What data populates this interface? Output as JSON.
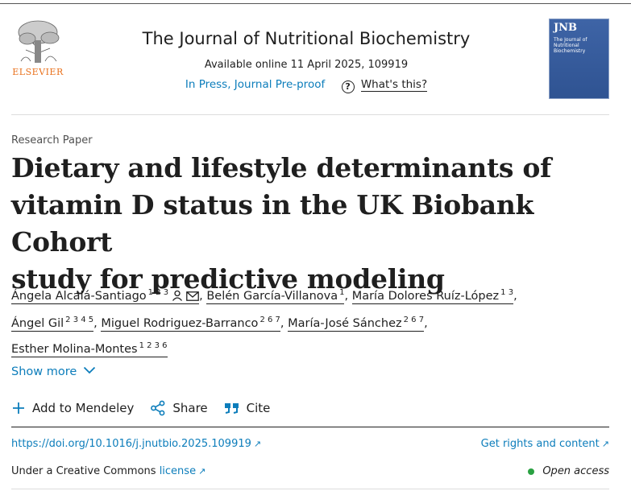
{
  "publisher": {
    "name": "ELSEVIER"
  },
  "journal": {
    "name": "The Journal of Nutritional Biochemistry",
    "available": "Available online 11 April 2025, 109919",
    "status": "In Press, Journal Pre-proof",
    "whats_this": "What's this?",
    "cover": {
      "abbr": "JNB",
      "subtitle": "The Journal of Nutritional Biochemistry",
      "color": "#3e64a6"
    }
  },
  "article": {
    "type": "Research Paper",
    "title_lines": [
      "Dietary and lifestyle determinants of",
      "vitamin D status in the UK Biobank Cohort",
      "study for predictive modeling"
    ]
  },
  "authors": [
    {
      "name": "Ángela Alcalá-Santiago",
      "sup": "1 2 3",
      "sep": ""
    },
    {
      "name": "Belén García-Villanova",
      "sup": "1",
      "sep": ", "
    },
    {
      "name": "María Dolores Ruíz-López",
      "sup": "1 3",
      "sep": ", "
    },
    {
      "name": "Ángel Gil",
      "sup": "2 3 4 5",
      "sep": ", "
    },
    {
      "name": "Miguel Rodriguez-Barranco",
      "sup": "2 6 7",
      "sep": ", "
    },
    {
      "name": "María-José Sánchez",
      "sup": "2 6 7",
      "sep": ", "
    },
    {
      "name": "Esther Molina-Montes",
      "sup": "1 2 3 6",
      "sep": ", "
    }
  ],
  "show_more": "Show more",
  "actions": {
    "mendeley": "Add to Mendeley",
    "share": "Share",
    "cite": "Cite"
  },
  "links": {
    "doi": "https://doi.org/10.1016/j.jnutbio.2025.109919",
    "rights": "Get rights and content",
    "license_prefix": "Under a Creative Commons",
    "license_link": "license",
    "open_access": "Open access",
    "arrow": "↗"
  },
  "icons": {
    "help": "?",
    "person": "person-icon",
    "mail": "mail-icon",
    "plus": "plus-icon",
    "share": "share-icon",
    "cite": "quote-icon",
    "chevron": "chevron-down-icon",
    "link_color": "#0c7dbb",
    "open_access_color": "#2aa142"
  }
}
